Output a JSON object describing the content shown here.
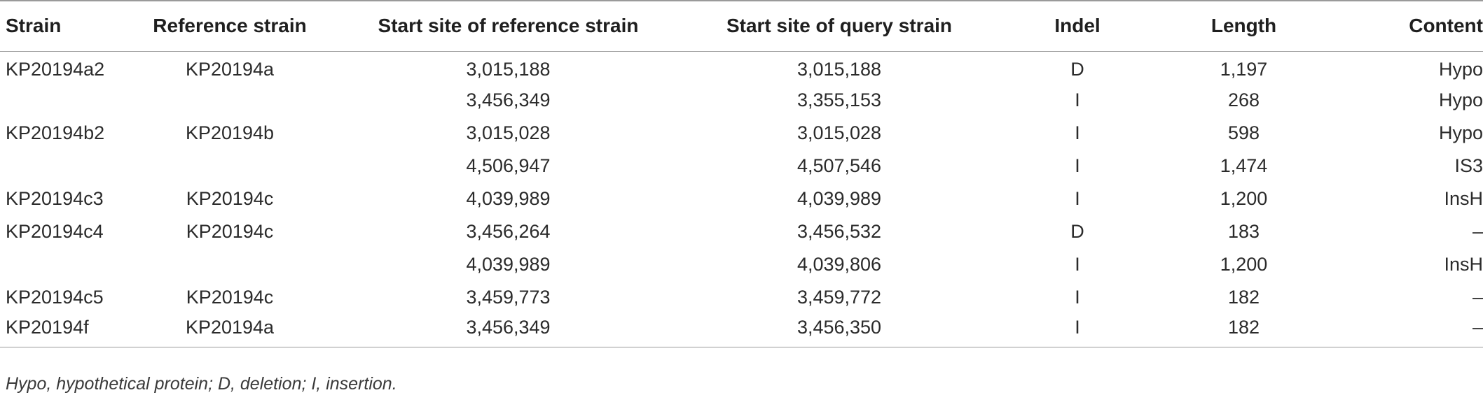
{
  "table": {
    "headers": [
      "Strain",
      "Reference strain",
      "Start site of reference strain",
      "Start site of query strain",
      "Indel",
      "Length",
      "Content"
    ],
    "rows": [
      [
        "KP20194a2",
        "KP20194a",
        "3,015,188",
        "3,015,188",
        "D",
        "1,197",
        "Hypo"
      ],
      [
        "",
        "",
        "3,456,349",
        "3,355,153",
        "I",
        "268",
        "Hypo"
      ],
      [
        "KP20194b2",
        "KP20194b",
        "3,015,028",
        "3,015,028",
        "I",
        "598",
        "Hypo"
      ],
      [
        "",
        "",
        "4,506,947",
        "4,507,546",
        "I",
        "1,474",
        "IS3"
      ],
      [
        "KP20194c3",
        "KP20194c",
        "4,039,989",
        "4,039,989",
        "I",
        "1,200",
        "InsH"
      ],
      [
        "KP20194c4",
        "KP20194c",
        "3,456,264",
        "3,456,532",
        "D",
        "183",
        "–"
      ],
      [
        "",
        "",
        "4,039,989",
        "4,039,806",
        "I",
        "1,200",
        "InsH"
      ],
      [
        "KP20194c5",
        "KP20194c",
        "3,459,773",
        "3,459,772",
        "I",
        "182",
        "–"
      ],
      [
        "KP20194f",
        "KP20194a",
        "3,456,349",
        "3,456,350",
        "I",
        "182",
        "–"
      ]
    ]
  },
  "footnote": "Hypo, hypothetical protein; D, deletion; I, insertion."
}
